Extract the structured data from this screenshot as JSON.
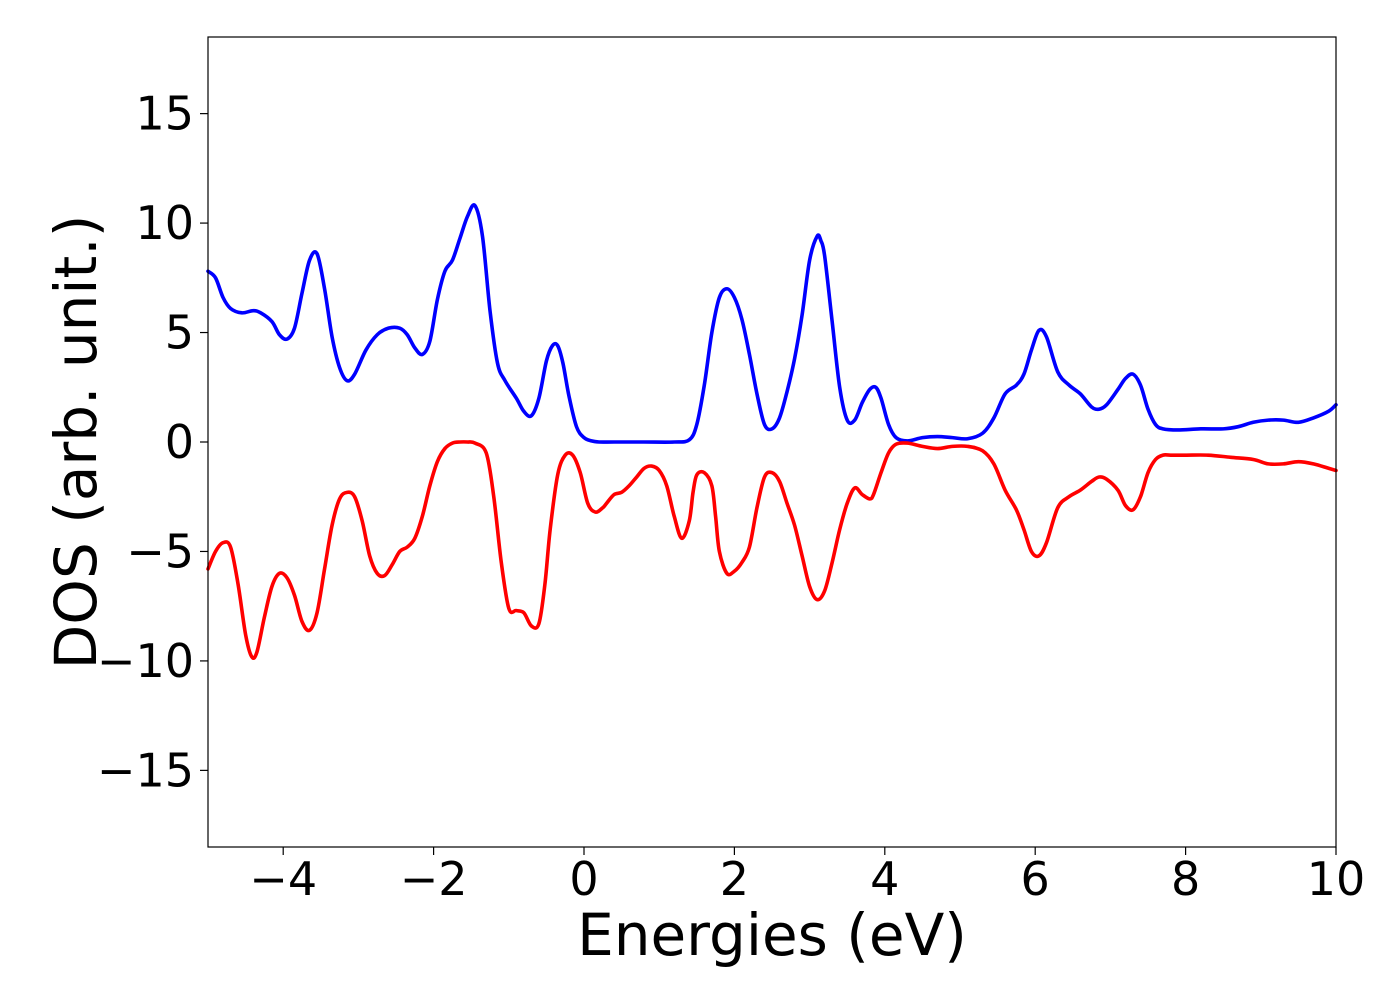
{
  "chart_data": {
    "type": "line",
    "title": "",
    "xlabel": "Energies (eV)",
    "ylabel": "DOS (arb. unit.)",
    "xlim": [
      -5,
      10
    ],
    "ylim": [
      -18.5,
      18.5
    ],
    "xticks": [
      -4,
      -2,
      0,
      2,
      4,
      6,
      8,
      10
    ],
    "xtick_labels": [
      "−4",
      "−2",
      "0",
      "2",
      "4",
      "6",
      "8",
      "10"
    ],
    "yticks": [
      15,
      10,
      5,
      0,
      -5,
      -10,
      -15
    ],
    "ytick_labels": [
      "15",
      "10",
      "5",
      "0",
      "−5",
      "−10",
      "−15"
    ],
    "grid": false,
    "legend": "none",
    "series": [
      {
        "color": "#0000ff",
        "x": [
          -5.0,
          -4.9,
          -4.8,
          -4.7,
          -4.55,
          -4.4,
          -4.3,
          -4.15,
          -4.05,
          -3.95,
          -3.85,
          -3.75,
          -3.65,
          -3.55,
          -3.45,
          -3.35,
          -3.25,
          -3.15,
          -3.05,
          -2.9,
          -2.75,
          -2.6,
          -2.45,
          -2.35,
          -2.25,
          -2.15,
          -2.05,
          -1.95,
          -1.85,
          -1.75,
          -1.65,
          -1.55,
          -1.45,
          -1.35,
          -1.25,
          -1.15,
          -1.05,
          -0.9,
          -0.8,
          -0.7,
          -0.6,
          -0.5,
          -0.42,
          -0.35,
          -0.28,
          -0.2,
          -0.1,
          0.0,
          0.1,
          0.2,
          0.4,
          0.8,
          1.2,
          1.4,
          1.5,
          1.6,
          1.7,
          1.8,
          1.9,
          2.0,
          2.1,
          2.2,
          2.3,
          2.4,
          2.5,
          2.6,
          2.7,
          2.8,
          2.9,
          3.0,
          3.1,
          3.15,
          3.2,
          3.3,
          3.4,
          3.5,
          3.6,
          3.7,
          3.8,
          3.88,
          3.95,
          4.05,
          4.15,
          4.3,
          4.5,
          4.7,
          4.9,
          5.1,
          5.3,
          5.45,
          5.6,
          5.75,
          5.85,
          5.95,
          6.05,
          6.15,
          6.3,
          6.45,
          6.6,
          6.75,
          6.85,
          6.95,
          7.1,
          7.2,
          7.3,
          7.4,
          7.5,
          7.6,
          7.7,
          7.9,
          8.2,
          8.5,
          8.7,
          8.9,
          9.1,
          9.3,
          9.5,
          9.7,
          9.9,
          10.0
        ],
        "y": [
          7.8,
          7.5,
          6.6,
          6.1,
          5.9,
          6.0,
          5.9,
          5.5,
          4.9,
          4.7,
          5.2,
          6.8,
          8.3,
          8.6,
          7.0,
          4.8,
          3.4,
          2.8,
          3.1,
          4.2,
          4.9,
          5.2,
          5.2,
          4.9,
          4.3,
          4.0,
          4.6,
          6.5,
          7.8,
          8.3,
          9.3,
          10.3,
          10.8,
          9.4,
          6.0,
          3.6,
          2.8,
          2.0,
          1.4,
          1.2,
          2.0,
          3.7,
          4.4,
          4.4,
          3.6,
          2.1,
          0.7,
          0.2,
          0.05,
          0.0,
          0.0,
          0.0,
          0.0,
          0.1,
          0.8,
          2.6,
          5.0,
          6.6,
          7.0,
          6.6,
          5.6,
          4.0,
          2.2,
          0.8,
          0.6,
          1.1,
          2.3,
          3.8,
          5.8,
          8.3,
          9.4,
          9.2,
          8.5,
          5.5,
          2.5,
          1.0,
          1.0,
          1.8,
          2.4,
          2.5,
          2.0,
          0.8,
          0.2,
          0.05,
          0.2,
          0.25,
          0.2,
          0.15,
          0.4,
          1.1,
          2.2,
          2.6,
          3.1,
          4.2,
          5.1,
          4.8,
          3.2,
          2.6,
          2.2,
          1.6,
          1.5,
          1.7,
          2.4,
          2.9,
          3.1,
          2.6,
          1.5,
          0.8,
          0.6,
          0.55,
          0.6,
          0.6,
          0.7,
          0.9,
          1.0,
          1.0,
          0.9,
          1.1,
          1.4,
          1.7
        ]
      },
      {
        "color": "#ff0000",
        "x": [
          -5.0,
          -4.9,
          -4.8,
          -4.7,
          -4.6,
          -4.5,
          -4.42,
          -4.35,
          -4.25,
          -4.15,
          -4.05,
          -3.95,
          -3.85,
          -3.75,
          -3.65,
          -3.55,
          -3.45,
          -3.35,
          -3.25,
          -3.15,
          -3.05,
          -2.95,
          -2.85,
          -2.75,
          -2.65,
          -2.55,
          -2.45,
          -2.35,
          -2.25,
          -2.15,
          -2.05,
          -1.95,
          -1.85,
          -1.75,
          -1.65,
          -1.55,
          -1.45,
          -1.3,
          -1.2,
          -1.1,
          -1.0,
          -0.9,
          -0.8,
          -0.7,
          -0.6,
          -0.52,
          -0.45,
          -0.35,
          -0.25,
          -0.15,
          -0.05,
          0.05,
          0.15,
          0.25,
          0.3,
          0.4,
          0.5,
          0.6,
          0.7,
          0.8,
          0.9,
          1.0,
          1.1,
          1.2,
          1.3,
          1.4,
          1.45,
          1.5,
          1.6,
          1.7,
          1.75,
          1.8,
          1.9,
          2.0,
          2.1,
          2.2,
          2.3,
          2.4,
          2.5,
          2.6,
          2.7,
          2.8,
          2.9,
          3.0,
          3.1,
          3.2,
          3.3,
          3.4,
          3.5,
          3.6,
          3.7,
          3.8,
          3.85,
          3.95,
          4.05,
          4.15,
          4.3,
          4.5,
          4.7,
          4.9,
          5.1,
          5.3,
          5.45,
          5.6,
          5.75,
          5.85,
          5.95,
          6.05,
          6.15,
          6.3,
          6.45,
          6.6,
          6.75,
          6.85,
          6.95,
          7.1,
          7.2,
          7.3,
          7.4,
          7.5,
          7.6,
          7.7,
          7.8,
          8.0,
          8.3,
          8.6,
          8.9,
          9.1,
          9.3,
          9.5,
          9.7,
          9.9,
          10.0
        ],
        "y": [
          -5.8,
          -5.0,
          -4.6,
          -4.8,
          -6.5,
          -8.8,
          -9.8,
          -9.6,
          -8.0,
          -6.6,
          -6.0,
          -6.2,
          -7.0,
          -8.2,
          -8.6,
          -7.8,
          -5.8,
          -3.8,
          -2.6,
          -2.3,
          -2.5,
          -3.6,
          -5.2,
          -6.0,
          -6.1,
          -5.6,
          -5.0,
          -4.8,
          -4.4,
          -3.4,
          -2.0,
          -0.9,
          -0.3,
          -0.05,
          0.0,
          0.0,
          -0.05,
          -0.5,
          -2.5,
          -5.5,
          -7.6,
          -7.7,
          -7.8,
          -8.4,
          -8.3,
          -6.5,
          -4.0,
          -1.5,
          -0.6,
          -0.6,
          -1.4,
          -2.8,
          -3.2,
          -3.0,
          -2.8,
          -2.4,
          -2.3,
          -2.0,
          -1.6,
          -1.2,
          -1.1,
          -1.3,
          -2.0,
          -3.4,
          -4.4,
          -3.6,
          -2.3,
          -1.5,
          -1.4,
          -2.0,
          -3.4,
          -5.0,
          -6.0,
          -5.9,
          -5.5,
          -4.8,
          -3.0,
          -1.6,
          -1.4,
          -1.8,
          -2.8,
          -3.8,
          -5.2,
          -6.6,
          -7.2,
          -6.8,
          -5.5,
          -4.0,
          -2.8,
          -2.1,
          -2.4,
          -2.6,
          -2.4,
          -1.4,
          -0.5,
          -0.1,
          -0.05,
          -0.2,
          -0.3,
          -0.2,
          -0.2,
          -0.4,
          -1.0,
          -2.2,
          -3.1,
          -4.0,
          -5.0,
          -5.2,
          -4.6,
          -3.0,
          -2.5,
          -2.2,
          -1.8,
          -1.6,
          -1.7,
          -2.2,
          -2.9,
          -3.1,
          -2.5,
          -1.4,
          -0.8,
          -0.6,
          -0.6,
          -0.6,
          -0.6,
          -0.7,
          -0.8,
          -1.0,
          -1.0,
          -0.9,
          -1.0,
          -1.2,
          -1.3
        ]
      }
    ]
  }
}
